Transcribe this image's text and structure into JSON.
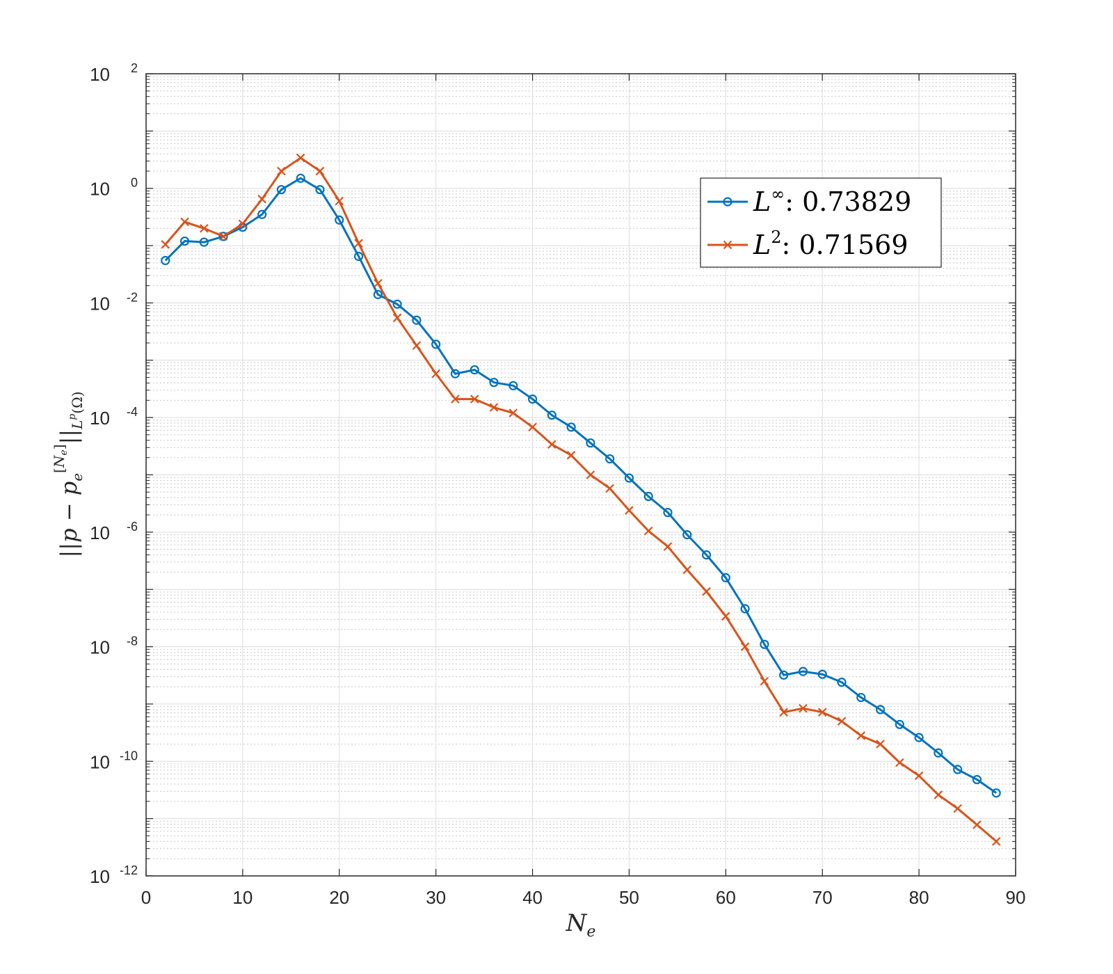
{
  "chart_data": {
    "type": "line",
    "xlabel": "N_e",
    "ylabel": "||p - p_e^[N_e]||_L^p(Ω)",
    "xlim": [
      0,
      90
    ],
    "ylim_exp": [
      -12,
      2
    ],
    "y_scale": "log",
    "grid": "major+minor",
    "xticks": [
      "0",
      "10",
      "20",
      "30",
      "40",
      "50",
      "60",
      "70",
      "80",
      "90"
    ],
    "yticks": [
      {
        "base": "10",
        "exp": "2"
      },
      {
        "base": "10",
        "exp": "0"
      },
      {
        "base": "10",
        "exp": "-2"
      },
      {
        "base": "10",
        "exp": "-4"
      },
      {
        "base": "10",
        "exp": "-6"
      },
      {
        "base": "10",
        "exp": "-8"
      },
      {
        "base": "10",
        "exp": "-10"
      },
      {
        "base": "10",
        "exp": "-12"
      }
    ],
    "x": [
      2,
      4,
      6,
      8,
      10,
      12,
      14,
      16,
      18,
      20,
      22,
      24,
      26,
      28,
      30,
      32,
      34,
      36,
      38,
      40,
      42,
      44,
      46,
      48,
      50,
      52,
      54,
      56,
      58,
      60,
      62,
      64,
      66,
      68,
      70,
      72,
      74,
      76,
      78,
      80,
      82,
      84,
      86,
      88
    ],
    "legend_position": "top-right",
    "series": [
      {
        "name": "L∞",
        "sup": "∞",
        "rate": "0.73829",
        "color": "#0072bd",
        "marker": "circle",
        "values": [
          0.055,
          0.12,
          0.115,
          0.145,
          0.21,
          0.35,
          0.95,
          1.5,
          0.95,
          0.28,
          0.065,
          0.014,
          0.0095,
          0.005,
          0.0019,
          0.00058,
          0.00068,
          0.00041,
          0.00036,
          0.00021,
          0.00011,
          6.8e-05,
          3.6e-05,
          1.9e-05,
          8.8e-06,
          4.2e-06,
          2.2e-06,
          9e-07,
          4e-07,
          1.6e-07,
          4.6e-08,
          1.1e-08,
          3.2e-09,
          3.7e-09,
          3.3e-09,
          2.4e-09,
          1.3e-09,
          8e-10,
          4.4e-10,
          2.6e-10,
          1.4e-10,
          7.2e-11,
          4.8e-11,
          2.8e-11
        ]
      },
      {
        "name": "L2",
        "sup": "2",
        "rate": "0.71569",
        "color": "#d95319",
        "marker": "x",
        "values": [
          0.105,
          0.26,
          0.2,
          0.145,
          0.24,
          0.65,
          2.0,
          3.4,
          2.0,
          0.6,
          0.11,
          0.022,
          0.0055,
          0.0018,
          0.00058,
          0.00021,
          0.00021,
          0.00015,
          0.00012,
          6.8e-05,
          3.4e-05,
          2.2e-05,
          1e-05,
          5.8e-06,
          2.4e-06,
          1.05e-06,
          5.6e-07,
          2.2e-07,
          9.2e-08,
          3.4e-08,
          1e-08,
          2.5e-09,
          7.2e-10,
          8.4e-10,
          7.2e-10,
          5e-10,
          2.8e-10,
          2e-10,
          9.5e-11,
          5.6e-11,
          2.6e-11,
          1.5e-11,
          7.8e-12,
          4e-12
        ]
      }
    ]
  }
}
